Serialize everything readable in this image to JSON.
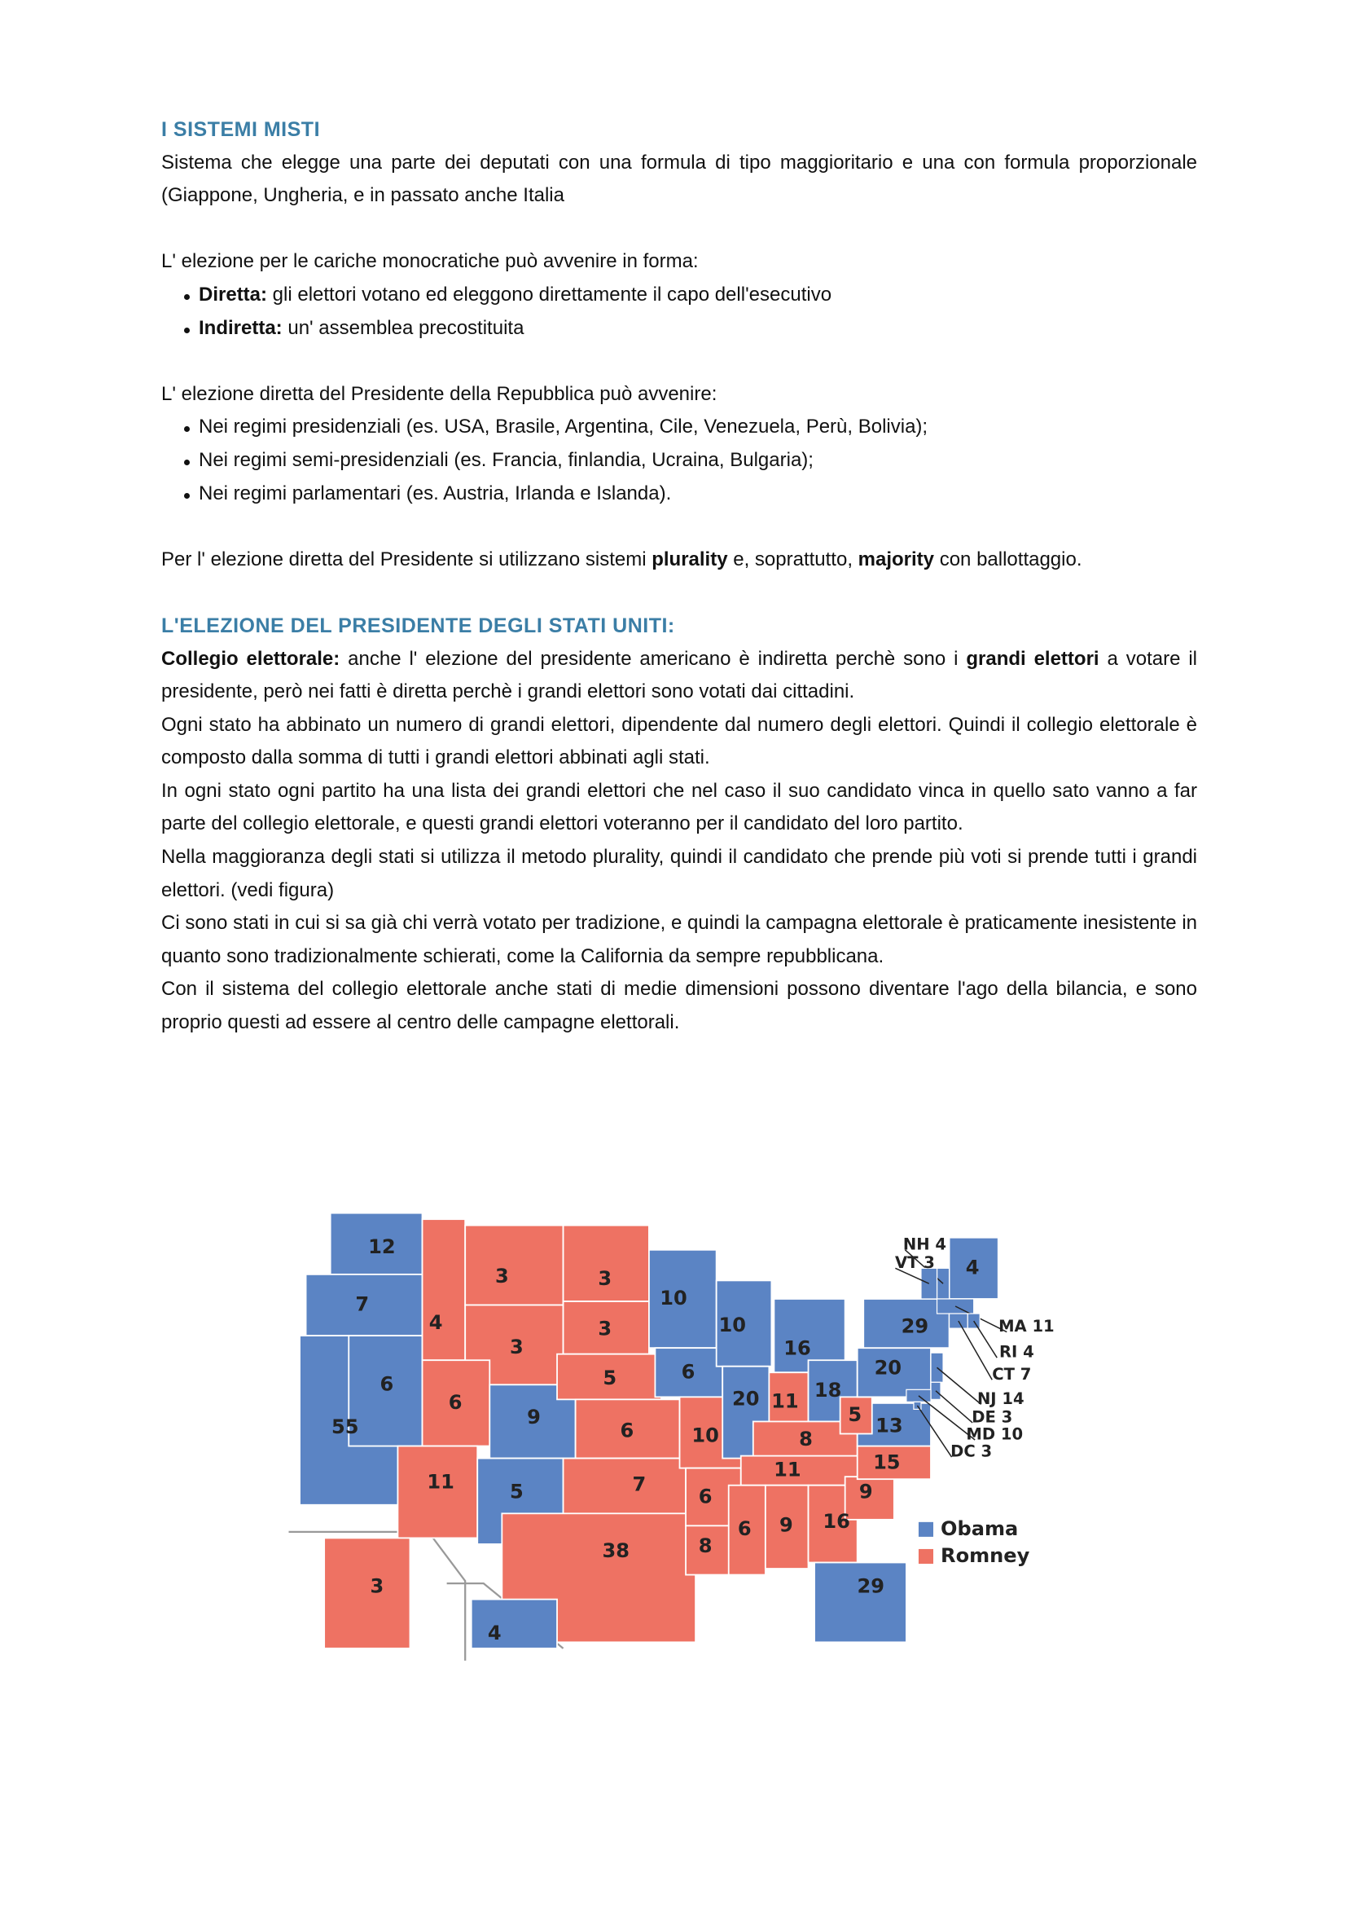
{
  "heading1": "I SISTEMI MISTI",
  "p1": "Sistema che elegge una parte dei deputati con una formula di tipo maggioritario e una con formula proporzionale (Giappone, Ungheria, e in passato anche Italia",
  "p2": "L' elezione per le cariche monocratiche può avvenire in forma:",
  "list1": [
    {
      "term": "Diretta:",
      "text": " gli elettori votano ed eleggono direttamente il capo dell'esecutivo"
    },
    {
      "term": "Indiretta:",
      "text": " un' assemblea precostituita"
    }
  ],
  "p3": "L' elezione diretta del Presidente della Repubblica può avvenire:",
  "list2": [
    "Nei regimi presidenziali (es. USA, Brasile, Argentina, Cile, Venezuela, Perù, Bolivia);",
    "Nei regimi semi-presidenziali (es. Francia, finlandia, Ucraina, Bulgaria);",
    "Nei regimi parlamentari (es. Austria, Irlanda e Islanda)."
  ],
  "p4": [
    {
      "text": "Per l' elezione diretta del Presidente si utilizzano sistemi "
    },
    {
      "text": "plurality",
      "bold": true
    },
    {
      "text": " e, soprattutto, "
    },
    {
      "text": "majority",
      "bold": true
    },
    {
      "text": " con ballottaggio."
    }
  ],
  "heading2": "L'ELEZIONE DEL PRESIDENTE DEGLI STATI UNITI:",
  "p5": [
    {
      "text": "Collegio elettorale:",
      "bold": true
    },
    {
      "text": " anche l' elezione del presidente americano è indiretta perchè sono i "
    },
    {
      "text": "grandi elettori",
      "bold": true
    },
    {
      "text": " a votare il presidente, però nei fatti è diretta perchè i grandi elettori sono votati dai cittadini."
    }
  ],
  "p6": "Ogni stato ha abbinato un numero di grandi elettori, dipendente dal numero degli elettori. Quindi il collegio elettorale è composto dalla somma di tutti i grandi elettori abbinati agli stati.",
  "p7": "In ogni stato ogni partito ha una lista dei grandi elettori che nel caso il suo candidato vinca in quello sato vanno a far parte del collegio elettorale, e questi grandi elettori voteranno per il candidato del loro partito.",
  "p8": "Nella maggioranza degli stati si utilizza il metodo plurality, quindi il candidato che prende più voti si prende tutti i grandi elettori. (vedi figura)",
  "p9": "Ci sono stati in cui si sa già chi verrà votato per tradizione, e quindi la campagna elettorale è praticamente inesistente in quanto sono tradizionalmente schierati, come la California da sempre repubblicana.",
  "p10": "Con il sistema del collegio elettorale anche stati di medie dimensioni possono diventare l'ago della bilancia, e sono proprio questi ad essere al centro delle campagne elettorali.",
  "map": {
    "legend": [
      {
        "name": "Obama",
        "color": "#5b84c4"
      },
      {
        "name": "Romney",
        "color": "#ee7263"
      }
    ],
    "states": [
      {
        "label": "12",
        "winner": "Obama"
      },
      {
        "label": "7",
        "winner": "Obama"
      },
      {
        "label": "55",
        "winner": "Obama"
      },
      {
        "label": "6",
        "winner": "Obama"
      },
      {
        "label": "4",
        "winner": "Romney"
      },
      {
        "label": "3",
        "winner": "Romney"
      },
      {
        "label": "3",
        "winner": "Romney"
      },
      {
        "label": "6",
        "winner": "Romney"
      },
      {
        "label": "11",
        "winner": "Romney"
      },
      {
        "label": "9",
        "winner": "Obama"
      },
      {
        "label": "5",
        "winner": "Obama"
      },
      {
        "label": "3",
        "winner": "Romney"
      },
      {
        "label": "3",
        "winner": "Romney"
      },
      {
        "label": "5",
        "winner": "Romney"
      },
      {
        "label": "6",
        "winner": "Romney"
      },
      {
        "label": "7",
        "winner": "Romney"
      },
      {
        "label": "38",
        "winner": "Romney"
      },
      {
        "label": "10",
        "winner": "Obama"
      },
      {
        "label": "6",
        "winner": "Obama"
      },
      {
        "label": "10",
        "winner": "Romney"
      },
      {
        "label": "6",
        "winner": "Romney"
      },
      {
        "label": "8",
        "winner": "Romney"
      },
      {
        "label": "10",
        "winner": "Obama"
      },
      {
        "label": "20",
        "winner": "Obama"
      },
      {
        "label": "16",
        "winner": "Obama"
      },
      {
        "label": "11",
        "winner": "Romney"
      },
      {
        "label": "18",
        "winner": "Obama"
      },
      {
        "label": "8",
        "winner": "Romney"
      },
      {
        "label": "11",
        "winner": "Romney"
      },
      {
        "label": "6",
        "winner": "Romney"
      },
      {
        "label": "9",
        "winner": "Romney"
      },
      {
        "label": "16",
        "winner": "Romney"
      },
      {
        "label": "29",
        "winner": "Obama"
      },
      {
        "label": "9",
        "winner": "Romney"
      },
      {
        "label": "15",
        "winner": "Romney"
      },
      {
        "label": "13",
        "winner": "Obama"
      },
      {
        "label": "5",
        "winner": "Romney"
      },
      {
        "label": "20",
        "winner": "Obama"
      },
      {
        "label": "29",
        "winner": "Obama"
      },
      {
        "label": "4",
        "winner": "Obama"
      },
      {
        "label": "3",
        "winner": "Romney"
      },
      {
        "label": "4",
        "winner": "Obama"
      }
    ],
    "callouts": [
      {
        "label": "NH 4",
        "winner": "Obama"
      },
      {
        "label": "VT 3",
        "winner": "Obama"
      },
      {
        "label": "MA 11",
        "winner": "Obama"
      },
      {
        "label": "RI 4",
        "winner": "Obama"
      },
      {
        "label": "CT 7",
        "winner": "Obama"
      },
      {
        "label": "NJ 14",
        "winner": "Obama"
      },
      {
        "label": "DE 3",
        "winner": "Obama"
      },
      {
        "label": "MD 10",
        "winner": "Obama"
      },
      {
        "label": "DC 3",
        "winner": "Obama"
      }
    ]
  }
}
